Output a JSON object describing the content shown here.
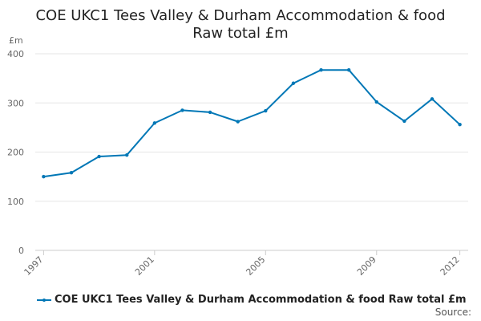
{
  "chart_data": {
    "type": "line",
    "title_line1": "COE UKC1 Tees Valley & Durham Accommodation & food",
    "title_line2": "Raw total £m",
    "ylabel": "£m",
    "ylim": [
      0,
      400
    ],
    "yticks": [
      0,
      100,
      200,
      300,
      400
    ],
    "xlim": [
      1996.7,
      2012.3
    ],
    "xticks": [
      1997,
      2001,
      2005,
      2009,
      2012
    ],
    "grid": true,
    "legend_position": "bottom-left",
    "series": [
      {
        "name": "COE UKC1 Tees Valley & Durham Accommodation & food Raw total £m",
        "color": "#0077b6",
        "x": [
          1997,
          1998,
          1999,
          2000,
          2001,
          2002,
          2003,
          2004,
          2005,
          2006,
          2007,
          2008,
          2009,
          2010,
          2011,
          2012
        ],
        "y": [
          150,
          158,
          191,
          194,
          259,
          285,
          281,
          262,
          284,
          340,
          367,
          367,
          302,
          263,
          308,
          256
        ]
      }
    ]
  },
  "source_label": "Source:"
}
